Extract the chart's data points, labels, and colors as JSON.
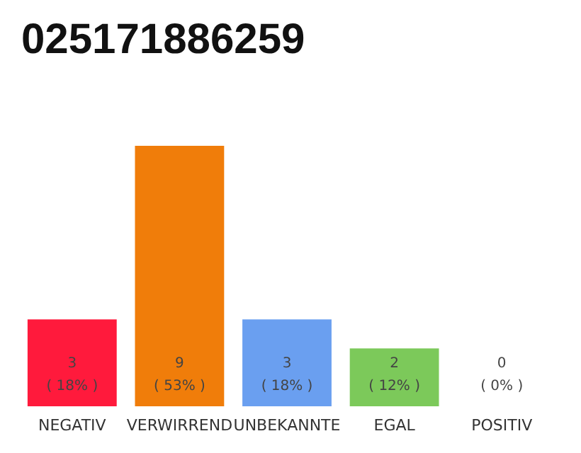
{
  "chart_data": {
    "type": "bar",
    "title": "025171886259",
    "categories": [
      "NEGATIV",
      "VERWIRREND",
      "UNBEKANNTE",
      "EGAL",
      "POSITIV"
    ],
    "values": [
      3,
      9,
      3,
      2,
      0
    ],
    "colors": [
      "#ff1a3c",
      "#f07d0a",
      "#6a9ff0",
      "#7cc95a",
      "#e0e0e0"
    ],
    "value_labels": [
      "3\n( 18% )",
      "9\n( 53% )",
      "3\n( 18% )",
      "2\n( 12% )",
      "0\n( 0% )"
    ]
  }
}
